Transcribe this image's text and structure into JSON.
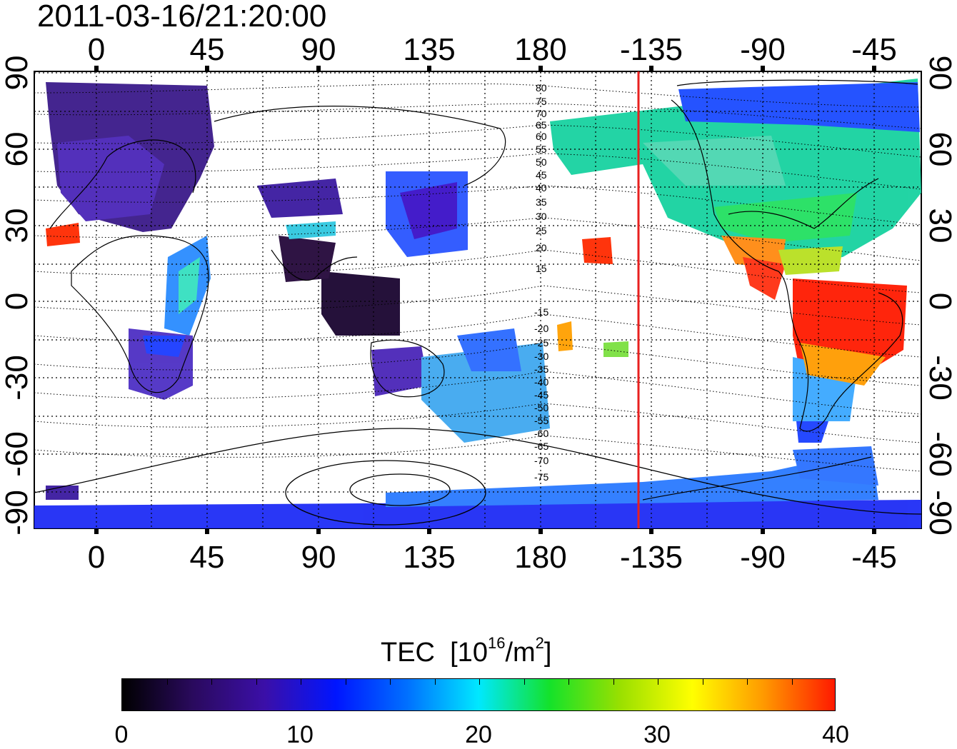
{
  "title": "2011-03-16/21:20:00",
  "map": {
    "x_tick_labels": [
      "0",
      "45",
      "90",
      "135",
      "180",
      "-135",
      "-90",
      "-45"
    ],
    "y_tick_labels_left": [
      "90",
      "60",
      "30",
      "0",
      "-30",
      "-60",
      "-90"
    ],
    "y_tick_labels_right": [
      "90",
      "60",
      "30",
      "0",
      "-30",
      "-60",
      "-90"
    ],
    "north_contour_labels": [
      "80",
      "75",
      "70",
      "65",
      "60",
      "55",
      "50",
      "45",
      "40",
      "35",
      "30",
      "25",
      "20",
      "15"
    ],
    "south_contour_labels": [
      "-15",
      "-20",
      "-25",
      "-30",
      "-35",
      "-40",
      "-45",
      "-50",
      "-55",
      "-60",
      "-65",
      "-70",
      "-75"
    ],
    "marker_longitude": -133,
    "marker_color": "#e8201f"
  },
  "colorbar": {
    "label": "TEC",
    "unit_base": "[10",
    "unit_exp": "16",
    "unit_mid": "/m",
    "unit_exp2": "2",
    "unit_end": "]",
    "ticks": [
      "0",
      "10",
      "20",
      "30",
      "40"
    ],
    "range": [
      0,
      40
    ],
    "colors": [
      "#000000",
      "#2a0a5e",
      "#3b0fa8",
      "#0015ff",
      "#0070ff",
      "#00e8ff",
      "#14e22a",
      "#9be000",
      "#ffff00",
      "#ff9900",
      "#ff1a00"
    ]
  }
}
